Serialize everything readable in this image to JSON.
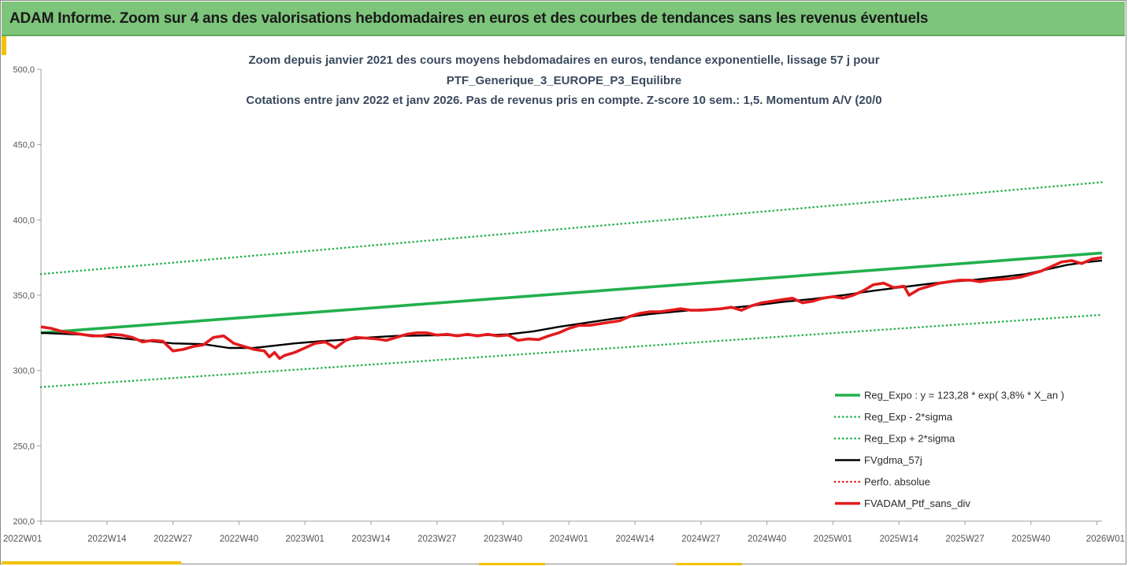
{
  "header": {
    "title": "ADAM Informe. Zoom sur 4 ans des valorisations hebdomadaires en euros et des courbes de tendances sans les revenus éventuels"
  },
  "colors": {
    "header_bg": "#7dc57b",
    "trend": "#22b04c",
    "sigma": "#22b04c",
    "mma": "#000000",
    "perf": "#e31a1c",
    "price": "#e31a1c"
  },
  "chart_data": {
    "type": "line",
    "title_lines": [
      "Zoom depuis janvier 2021 des cours moyens hebdomadaires  en euros, tendance exponentielle, lissage 57 j pour",
      "PTF_Generique_3_EUROPE_P3_Equilibre",
      "Cotations entre janv 2022 et janv 2026. Pas de revenus pris en compte. Z-score 10 sem.: 1,5. Momentum A/V (20/0"
    ],
    "ylim": [
      200,
      500
    ],
    "yticks": [
      "500,0",
      "450,0",
      "400,0",
      "350,0",
      "300,0",
      "250,0",
      "200,0"
    ],
    "yvalues": [
      500,
      450,
      400,
      350,
      300,
      250,
      200
    ],
    "x_range_weeks": [
      0,
      209
    ],
    "xtick_labels": [
      "2022W01",
      "2022W14",
      "2022W27",
      "2022W40",
      "2023W01",
      "2023W14",
      "2023W27",
      "2023W40",
      "2024W01",
      "2024W14",
      "2024W27",
      "2024W40",
      "2025W01",
      "2025W14",
      "2025W27",
      "2025W40",
      "2026W01"
    ],
    "xtick_weeks": [
      0,
      13,
      26,
      39,
      52,
      65,
      78,
      91,
      104,
      117,
      130,
      143,
      156,
      169,
      182,
      195,
      208
    ],
    "grid": false,
    "legend_position": "bottom-right",
    "series": [
      {
        "name": "Reg_Expo : y = 123,28 * exp( 3,8% *  X_an )",
        "style": "solid-thick",
        "color": "#22b04c",
        "points": [
          [
            0,
            325
          ],
          [
            209,
            378
          ]
        ]
      },
      {
        "name": "Reg_Exp - 2*sigma",
        "style": "dotted",
        "color": "#22b04c",
        "points": [
          [
            0,
            289
          ],
          [
            209,
            337
          ]
        ]
      },
      {
        "name": "Reg_Exp + 2*sigma",
        "style": "dotted",
        "color": "#22b04c",
        "points": [
          [
            0,
            364
          ],
          [
            209,
            425
          ]
        ]
      },
      {
        "name": "FVgdma_57j",
        "style": "solid-black",
        "color": "#000000",
        "points": [
          [
            0,
            325
          ],
          [
            10,
            323.5
          ],
          [
            20,
            320
          ],
          [
            26,
            318
          ],
          [
            32,
            317.5
          ],
          [
            37,
            315
          ],
          [
            42,
            315
          ],
          [
            46,
            316.5
          ],
          [
            50,
            318
          ],
          [
            55,
            319.5
          ],
          [
            60,
            320.5
          ],
          [
            65,
            322
          ],
          [
            70,
            323
          ],
          [
            80,
            323.5
          ],
          [
            88,
            323.5
          ],
          [
            92,
            324
          ],
          [
            97,
            326
          ],
          [
            102,
            329
          ],
          [
            108,
            332
          ],
          [
            113,
            334.5
          ],
          [
            120,
            337.5
          ],
          [
            128,
            340
          ],
          [
            134,
            341
          ],
          [
            140,
            343
          ],
          [
            146,
            345.5
          ],
          [
            152,
            347.5
          ],
          [
            158,
            350
          ],
          [
            164,
            353
          ],
          [
            170,
            355.5
          ],
          [
            176,
            358
          ],
          [
            183,
            360
          ],
          [
            189,
            362
          ],
          [
            194,
            364
          ],
          [
            198,
            367
          ],
          [
            202,
            370
          ],
          [
            206,
            372
          ],
          [
            209,
            373
          ]
        ]
      },
      {
        "name": "Perfo. absolue",
        "style": "dotted",
        "color": "#e31a1c",
        "points": []
      },
      {
        "name": "FVADAM_Ptf_sans_div",
        "style": "solid-thick",
        "color": "#e31a1c",
        "points": [
          [
            0,
            329
          ],
          [
            2,
            328
          ],
          [
            4,
            326
          ],
          [
            6,
            325
          ],
          [
            8,
            324
          ],
          [
            10,
            323
          ],
          [
            12,
            323
          ],
          [
            14,
            324
          ],
          [
            16,
            323.5
          ],
          [
            18,
            322
          ],
          [
            20,
            319
          ],
          [
            22,
            320
          ],
          [
            24,
            319.5
          ],
          [
            26,
            313
          ],
          [
            28,
            314
          ],
          [
            30,
            316
          ],
          [
            32,
            317
          ],
          [
            34,
            322
          ],
          [
            36,
            323
          ],
          [
            38,
            318
          ],
          [
            40,
            316
          ],
          [
            42,
            314
          ],
          [
            44,
            313
          ],
          [
            45,
            309
          ],
          [
            46,
            312
          ],
          [
            47,
            308
          ],
          [
            48,
            310
          ],
          [
            50,
            312
          ],
          [
            52,
            315
          ],
          [
            54,
            318
          ],
          [
            56,
            319
          ],
          [
            58,
            315
          ],
          [
            60,
            320
          ],
          [
            62,
            322
          ],
          [
            64,
            321.5
          ],
          [
            66,
            321
          ],
          [
            68,
            320
          ],
          [
            70,
            322
          ],
          [
            72,
            324
          ],
          [
            74,
            325
          ],
          [
            76,
            325
          ],
          [
            78,
            323.5
          ],
          [
            80,
            324
          ],
          [
            82,
            323
          ],
          [
            84,
            324
          ],
          [
            86,
            323
          ],
          [
            88,
            324
          ],
          [
            90,
            323
          ],
          [
            92,
            323.5
          ],
          [
            94,
            320
          ],
          [
            96,
            321
          ],
          [
            98,
            320.5
          ],
          [
            100,
            323
          ],
          [
            102,
            325
          ],
          [
            104,
            328
          ],
          [
            106,
            330
          ],
          [
            108,
            330
          ],
          [
            110,
            331
          ],
          [
            112,
            332
          ],
          [
            114,
            333
          ],
          [
            116,
            336
          ],
          [
            118,
            338
          ],
          [
            120,
            339
          ],
          [
            122,
            339
          ],
          [
            124,
            340
          ],
          [
            126,
            341
          ],
          [
            128,
            340
          ],
          [
            130,
            340
          ],
          [
            132,
            340.5
          ],
          [
            134,
            341
          ],
          [
            136,
            342
          ],
          [
            138,
            340
          ],
          [
            140,
            343
          ],
          [
            142,
            345
          ],
          [
            144,
            346
          ],
          [
            146,
            347
          ],
          [
            148,
            348
          ],
          [
            150,
            345
          ],
          [
            152,
            346
          ],
          [
            154,
            348
          ],
          [
            156,
            349
          ],
          [
            158,
            348
          ],
          [
            160,
            350
          ],
          [
            162,
            353
          ],
          [
            164,
            357
          ],
          [
            166,
            358
          ],
          [
            168,
            355
          ],
          [
            170,
            356
          ],
          [
            171,
            350
          ],
          [
            173,
            354
          ],
          [
            175,
            356
          ],
          [
            177,
            358
          ],
          [
            179,
            359
          ],
          [
            181,
            360
          ],
          [
            183,
            360
          ],
          [
            185,
            359
          ],
          [
            187,
            360
          ],
          [
            189,
            360.5
          ],
          [
            191,
            361
          ],
          [
            193,
            362
          ],
          [
            195,
            364
          ],
          [
            197,
            366
          ],
          [
            199,
            369
          ],
          [
            201,
            372
          ],
          [
            203,
            373
          ],
          [
            205,
            371
          ],
          [
            207,
            374
          ],
          [
            209,
            375
          ]
        ]
      }
    ]
  }
}
